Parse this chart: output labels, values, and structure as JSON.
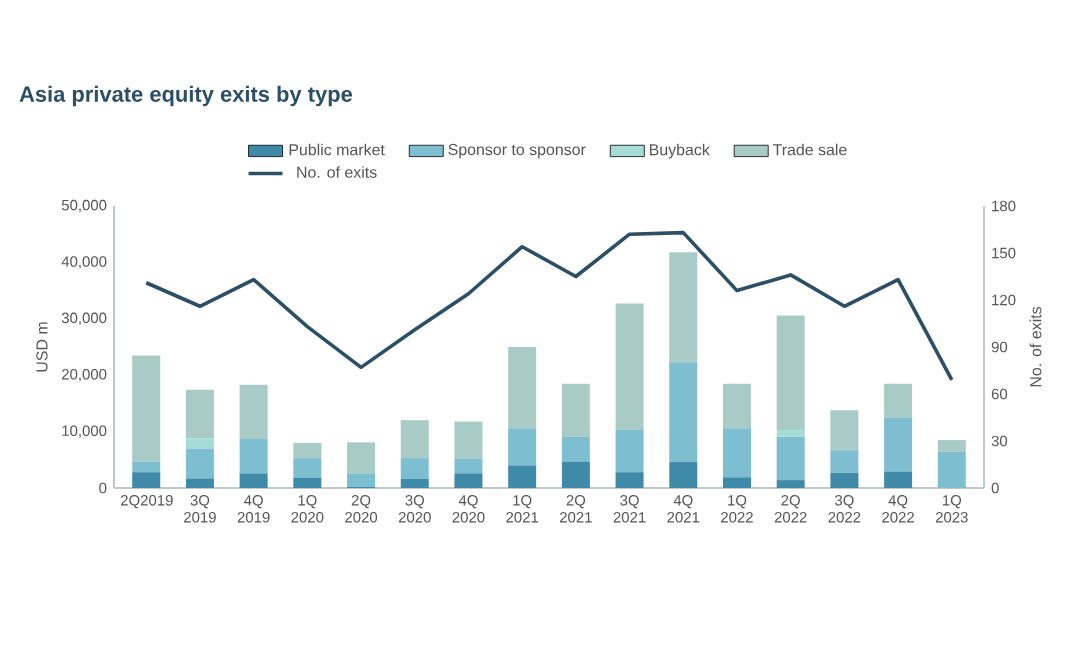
{
  "chart_data": {
    "type": "bar",
    "title": "Asia private equity exits by type",
    "ylabel": "USD m",
    "y2label": "No. of exits",
    "stacked": true,
    "legend": "top",
    "grid": false,
    "categories": [
      "2Q2019",
      "3Q 2019",
      "4Q 2019",
      "1Q 2020",
      "2Q 2020",
      "3Q 2020",
      "4Q 2020",
      "1Q 2021",
      "2Q 2021",
      "3Q 2021",
      "4Q 2021",
      "1Q 2022",
      "2Q 2022",
      "3Q 2022",
      "4Q 2022",
      "1Q 2023"
    ],
    "series": [
      {
        "name": "Public market",
        "color": "#3e8aa8",
        "values": [
          2800,
          1700,
          2600,
          1800,
          200,
          1600,
          2600,
          4000,
          4700,
          2800,
          4600,
          1900,
          1400,
          2700,
          2900,
          0
        ]
      },
      {
        "name": "Sponsor to sponsor",
        "color": "#7dbfd0",
        "values": [
          1900,
          5300,
          6100,
          3500,
          2400,
          3700,
          2600,
          6600,
          4400,
          7500,
          17700,
          8700,
          7700,
          4000,
          9500,
          6400
        ]
      },
      {
        "name": "Buyback",
        "color": "#a6dcd6",
        "values": [
          0,
          1800,
          0,
          0,
          0,
          0,
          0,
          0,
          0,
          0,
          0,
          0,
          1200,
          0,
          0,
          0
        ]
      },
      {
        "name": "Trade sale",
        "color": "#a9cbc6",
        "values": [
          18800,
          8600,
          9600,
          2700,
          5500,
          6700,
          6600,
          14400,
          9400,
          22400,
          19500,
          7900,
          20300,
          7100,
          6100,
          2100
        ]
      },
      {
        "name": "No. of exits",
        "type": "line",
        "axis": "y2",
        "color": "#2c4f66",
        "values": [
          131,
          116,
          133,
          103,
          77,
          101,
          124,
          154,
          135,
          162,
          163,
          126,
          136,
          116,
          133,
          69
        ]
      }
    ],
    "ylim": [
      0,
      50000
    ],
    "yticks": [
      0,
      {
        "value": 10000,
        "label": "10,000"
      },
      {
        "value": 20000,
        "label": "20,000"
      },
      {
        "value": 30000,
        "label": "30,000"
      },
      {
        "value": 40000,
        "label": "40,000"
      },
      {
        "value": 50000,
        "label": "50,000"
      }
    ],
    "y2lim": [
      0,
      180
    ],
    "y2ticks": [
      0,
      30,
      60,
      90,
      120,
      150,
      180
    ]
  }
}
